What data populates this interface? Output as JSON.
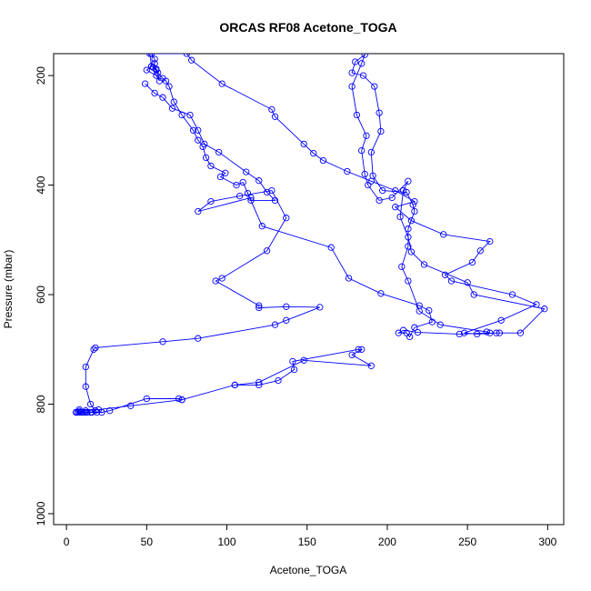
{
  "chart_data": {
    "type": "line",
    "title": "ORCAS RF08 Acetone_TOGA",
    "xlabel": "Acetone_TOGA",
    "ylabel": "Pressure (mbar)",
    "xlim": [
      -8,
      310
    ],
    "ylim": [
      1020,
      160
    ],
    "y_reversed": true,
    "x_ticks": [
      0,
      50,
      100,
      150,
      200,
      250,
      300
    ],
    "y_ticks": [
      200,
      400,
      600,
      800,
      1000
    ],
    "grid": false,
    "series": [
      {
        "color": "#0000ff",
        "marker": "open-circle",
        "points": [
          [
            52,
            160
          ],
          [
            53,
            183
          ],
          [
            50,
            190
          ],
          [
            56,
            200
          ],
          [
            58,
            210
          ],
          [
            56,
            190
          ],
          [
            54,
            185
          ],
          [
            55,
            178
          ],
          [
            55,
            170
          ],
          [
            53,
            160
          ],
          [
            75,
            160
          ],
          [
            78,
            172
          ],
          [
            97,
            215
          ],
          [
            128,
            262
          ],
          [
            130,
            275
          ],
          [
            148,
            325
          ],
          [
            154,
            342
          ],
          [
            160,
            355
          ],
          [
            175,
            375
          ],
          [
            190,
            393
          ],
          [
            205,
            410
          ],
          [
            217,
            430
          ],
          [
            205,
            440
          ],
          [
            215,
            465
          ],
          [
            235,
            490
          ],
          [
            264,
            503
          ],
          [
            258,
            520
          ],
          [
            253,
            541
          ],
          [
            236,
            564
          ],
          [
            240,
            575
          ],
          [
            278,
            600
          ],
          [
            293,
            618
          ],
          [
            271,
            647
          ],
          [
            248,
            670
          ],
          [
            256,
            672
          ],
          [
            268,
            670
          ],
          [
            270,
            670
          ],
          [
            283,
            670
          ],
          [
            298,
            626
          ],
          [
            254,
            600
          ],
          [
            250,
            578
          ],
          [
            223,
            545
          ],
          [
            215,
            522
          ],
          [
            213,
            495
          ],
          [
            208,
            458
          ],
          [
            210,
            410
          ],
          [
            213,
            393
          ],
          [
            203,
            423
          ],
          [
            195,
            428
          ],
          [
            188,
            400
          ],
          [
            186,
            380
          ],
          [
            184,
            337
          ],
          [
            187,
            310
          ],
          [
            181,
            272
          ],
          [
            178,
            220
          ],
          [
            184,
            178
          ],
          [
            186,
            162
          ],
          [
            180,
            175
          ],
          [
            178,
            195
          ],
          [
            185,
            200
          ],
          [
            192,
            220
          ],
          [
            195,
            268
          ],
          [
            196,
            302
          ],
          [
            190,
            340
          ],
          [
            191,
            383
          ],
          [
            197,
            410
          ],
          [
            212,
            413
          ],
          [
            216,
            436
          ],
          [
            217,
            448
          ],
          [
            213,
            480
          ],
          [
            213,
            512
          ],
          [
            209,
            549
          ],
          [
            213,
            575
          ],
          [
            220,
            630
          ],
          [
            233,
            655
          ],
          [
            262,
            668
          ],
          [
            264,
            670
          ],
          [
            245,
            672
          ],
          [
            219,
            669
          ],
          [
            210,
            665
          ],
          [
            207,
            670
          ],
          [
            212,
            670
          ],
          [
            214,
            677
          ],
          [
            217,
            660
          ],
          [
            228,
            650
          ],
          [
            226,
            629
          ],
          [
            220,
            620
          ],
          [
            196,
            598
          ],
          [
            176,
            570
          ],
          [
            165,
            514
          ],
          [
            122,
            475
          ],
          [
            113,
            415
          ],
          [
            110,
            395
          ],
          [
            106,
            400
          ],
          [
            96,
            385
          ],
          [
            99,
            378
          ],
          [
            90,
            365
          ],
          [
            87,
            350
          ],
          [
            85,
            330
          ],
          [
            82,
            318
          ],
          [
            79,
            300
          ],
          [
            72,
            272
          ],
          [
            67,
            248
          ],
          [
            64,
            220
          ],
          [
            62,
            210
          ],
          [
            60,
            205
          ],
          [
            57,
            195
          ],
          [
            56,
            188
          ],
          [
            54,
            185
          ],
          [
            53,
            183
          ]
        ]
      },
      {
        "color": "#0000ff",
        "marker": "open-circle",
        "points": [
          [
            49,
            215
          ],
          [
            55,
            232
          ],
          [
            60,
            240
          ],
          [
            66,
            260
          ],
          [
            77,
            272
          ],
          [
            82,
            300
          ],
          [
            86,
            325
          ],
          [
            95,
            340
          ],
          [
            112,
            376
          ],
          [
            120,
            392
          ],
          [
            125,
            413
          ],
          [
            130,
            428
          ],
          [
            115,
            428
          ],
          [
            115,
            423
          ],
          [
            82,
            448
          ],
          [
            90,
            430
          ],
          [
            108,
            420
          ],
          [
            128,
            410
          ],
          [
            137,
            460
          ],
          [
            125,
            520
          ],
          [
            97,
            570
          ],
          [
            93,
            575
          ],
          [
            120,
            620
          ],
          [
            120,
            624
          ],
          [
            137,
            622
          ],
          [
            158,
            623
          ],
          [
            137,
            647
          ],
          [
            130,
            655
          ],
          [
            82,
            680
          ],
          [
            60,
            686
          ],
          [
            18,
            697
          ],
          [
            17,
            700
          ],
          [
            12,
            732
          ],
          [
            12,
            768
          ],
          [
            15,
            800
          ],
          [
            18,
            812
          ],
          [
            15,
            815
          ],
          [
            12,
            815
          ],
          [
            10,
            815
          ],
          [
            8,
            815
          ],
          [
            7,
            815
          ],
          [
            6,
            815
          ]
        ]
      },
      {
        "color": "#0000ff",
        "marker": "open-circle",
        "points": [
          [
            6,
            815
          ],
          [
            8,
            813
          ],
          [
            9,
            815
          ],
          [
            11,
            815
          ],
          [
            13,
            815
          ],
          [
            16,
            815
          ],
          [
            19,
            815
          ],
          [
            22,
            815
          ],
          [
            27,
            812
          ],
          [
            50,
            790
          ],
          [
            70,
            790
          ],
          [
            72,
            792
          ],
          [
            105,
            765
          ],
          [
            120,
            765
          ],
          [
            132,
            757
          ],
          [
            142,
            737
          ],
          [
            141,
            722
          ],
          [
            182,
            700
          ],
          [
            184,
            700
          ],
          [
            178,
            710
          ],
          [
            190,
            730
          ],
          [
            148,
            720
          ],
          [
            120,
            760
          ],
          [
            105,
            765
          ],
          [
            72,
            792
          ],
          [
            40,
            803
          ],
          [
            20,
            810
          ],
          [
            12,
            812
          ],
          [
            8,
            810
          ],
          [
            6,
            815
          ]
        ]
      }
    ]
  }
}
